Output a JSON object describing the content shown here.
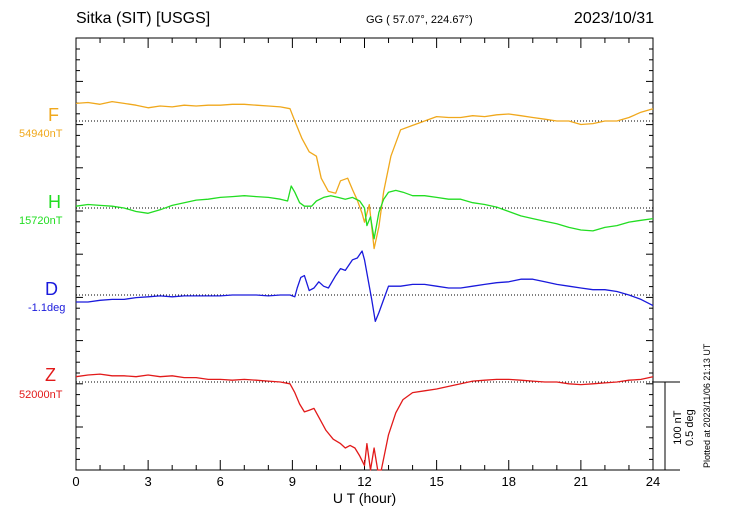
{
  "header": {
    "station": "Sitka (SIT)  [USGS]",
    "coords": "GG ( 57.07°, 224.67°)",
    "date": "2023/10/31"
  },
  "plotted_note": "Plotted at 2023/11/06 21:13 UT",
  "scale_bar": {
    "line1": "100 nT",
    "line2": "0.5 deg"
  },
  "chart_data": {
    "type": "line",
    "title": "",
    "xlabel": "U T (hour)",
    "xlim": [
      0,
      24
    ],
    "xticks": [
      0,
      3,
      6,
      9,
      12,
      15,
      18,
      21,
      24
    ],
    "grid": false,
    "series": [
      {
        "name": "F",
        "baseline": "54940nT",
        "color": "#f0a81c",
        "points": [
          [
            0,
            -20
          ],
          [
            0.5,
            -21
          ],
          [
            1,
            -19
          ],
          [
            1.5,
            -22
          ],
          [
            2,
            -20
          ],
          [
            2.5,
            -18
          ],
          [
            3,
            -15
          ],
          [
            3.5,
            -17
          ],
          [
            4,
            -16
          ],
          [
            4.5,
            -18
          ],
          [
            5,
            -17
          ],
          [
            5.5,
            -18
          ],
          [
            6,
            -18
          ],
          [
            6.5,
            -19
          ],
          [
            7,
            -19
          ],
          [
            7.5,
            -18
          ],
          [
            8,
            -17
          ],
          [
            8.5,
            -16
          ],
          [
            8.9,
            -14
          ],
          [
            9.1,
            0
          ],
          [
            9.4,
            20
          ],
          [
            9.7,
            35
          ],
          [
            10,
            40
          ],
          [
            10.2,
            65
          ],
          [
            10.5,
            80
          ],
          [
            10.8,
            82
          ],
          [
            11,
            68
          ],
          [
            11.3,
            65
          ],
          [
            11.5,
            78
          ],
          [
            11.7,
            90
          ],
          [
            11.9,
            105
          ],
          [
            12,
            115
          ],
          [
            12.2,
            95
          ],
          [
            12.4,
            145
          ],
          [
            12.6,
            120
          ],
          [
            12.8,
            80
          ],
          [
            13.1,
            40
          ],
          [
            13.5,
            10
          ],
          [
            14,
            5
          ],
          [
            14.5,
            0
          ],
          [
            15,
            -5
          ],
          [
            15.5,
            -4
          ],
          [
            16,
            -4
          ],
          [
            16.5,
            -6
          ],
          [
            17,
            -5
          ],
          [
            17.5,
            -7
          ],
          [
            18,
            -8
          ],
          [
            18.5,
            -6
          ],
          [
            19,
            -4
          ],
          [
            19.5,
            -2
          ],
          [
            20,
            0
          ],
          [
            20.5,
            0
          ],
          [
            21,
            4
          ],
          [
            21.5,
            3
          ],
          [
            22,
            0
          ],
          [
            22.5,
            0
          ],
          [
            23,
            -4
          ],
          [
            23.5,
            -10
          ],
          [
            24,
            -14
          ]
        ]
      },
      {
        "name": "H",
        "baseline": "15720nT",
        "color": "#22dd22",
        "points": [
          [
            0,
            -2
          ],
          [
            0.5,
            -4
          ],
          [
            1,
            -3
          ],
          [
            1.5,
            -2
          ],
          [
            2,
            0
          ],
          [
            2.5,
            4
          ],
          [
            3,
            6
          ],
          [
            3.5,
            2
          ],
          [
            4,
            -3
          ],
          [
            4.5,
            -6
          ],
          [
            5,
            -9
          ],
          [
            5.5,
            -10
          ],
          [
            6,
            -12
          ],
          [
            6.5,
            -13
          ],
          [
            7,
            -14
          ],
          [
            7.5,
            -13
          ],
          [
            8,
            -12
          ],
          [
            8.5,
            -10
          ],
          [
            8.8,
            -8
          ],
          [
            8.95,
            -25
          ],
          [
            9.1,
            -18
          ],
          [
            9.3,
            -6
          ],
          [
            9.5,
            -2
          ],
          [
            9.8,
            -2
          ],
          [
            10,
            -8
          ],
          [
            10.3,
            -12
          ],
          [
            10.6,
            -14
          ],
          [
            10.9,
            -12
          ],
          [
            11.2,
            -10
          ],
          [
            11.5,
            -12
          ],
          [
            11.8,
            -8
          ],
          [
            12,
            0
          ],
          [
            12.1,
            20
          ],
          [
            12.25,
            10
          ],
          [
            12.4,
            35
          ],
          [
            12.6,
            5
          ],
          [
            12.8,
            -10
          ],
          [
            13,
            -18
          ],
          [
            13.3,
            -20
          ],
          [
            13.6,
            -18
          ],
          [
            14,
            -14
          ],
          [
            14.5,
            -14
          ],
          [
            15,
            -12
          ],
          [
            15.5,
            -10
          ],
          [
            16,
            -10
          ],
          [
            16.5,
            -6
          ],
          [
            17,
            -4
          ],
          [
            17.5,
            -1
          ],
          [
            18,
            4
          ],
          [
            18.5,
            9
          ],
          [
            19,
            12
          ],
          [
            19.5,
            15
          ],
          [
            20,
            18
          ],
          [
            20.5,
            22
          ],
          [
            21,
            25
          ],
          [
            21.5,
            26
          ],
          [
            22,
            22
          ],
          [
            22.5,
            20
          ],
          [
            23,
            16
          ],
          [
            23.5,
            14
          ],
          [
            24,
            12
          ]
        ]
      },
      {
        "name": "D",
        "baseline": "-1.1deg",
        "color": "#1a1adc",
        "points": [
          [
            0,
            8
          ],
          [
            0.5,
            8
          ],
          [
            1,
            6
          ],
          [
            1.5,
            5
          ],
          [
            2,
            5
          ],
          [
            2.5,
            3
          ],
          [
            3,
            2
          ],
          [
            3.5,
            1
          ],
          [
            4,
            2
          ],
          [
            4.5,
            1
          ],
          [
            5,
            1
          ],
          [
            5.5,
            1
          ],
          [
            6,
            1
          ],
          [
            6.5,
            0
          ],
          [
            7,
            0
          ],
          [
            7.5,
            0
          ],
          [
            8,
            1
          ],
          [
            8.5,
            0
          ],
          [
            8.9,
            0
          ],
          [
            9.1,
            2
          ],
          [
            9.2,
            -8
          ],
          [
            9.35,
            -20
          ],
          [
            9.5,
            -22
          ],
          [
            9.7,
            -5
          ],
          [
            9.9,
            -8
          ],
          [
            10.1,
            -15
          ],
          [
            10.3,
            -10
          ],
          [
            10.5,
            -8
          ],
          [
            10.8,
            -22
          ],
          [
            11,
            -30
          ],
          [
            11.2,
            -28
          ],
          [
            11.5,
            -40
          ],
          [
            11.7,
            -42
          ],
          [
            11.9,
            -50
          ],
          [
            12,
            -40
          ],
          [
            12.2,
            -10
          ],
          [
            12.3,
            5
          ],
          [
            12.45,
            30
          ],
          [
            12.6,
            20
          ],
          [
            12.8,
            5
          ],
          [
            13,
            -10
          ],
          [
            13.5,
            -10
          ],
          [
            14,
            -12
          ],
          [
            14.5,
            -12
          ],
          [
            15,
            -10
          ],
          [
            15.5,
            -8
          ],
          [
            16,
            -8
          ],
          [
            16.5,
            -10
          ],
          [
            17,
            -12
          ],
          [
            17.5,
            -14
          ],
          [
            18,
            -15
          ],
          [
            18.5,
            -18
          ],
          [
            19,
            -18
          ],
          [
            19.5,
            -15
          ],
          [
            20,
            -12
          ],
          [
            20.5,
            -10
          ],
          [
            21,
            -8
          ],
          [
            21.5,
            -6
          ],
          [
            22,
            -6
          ],
          [
            22.5,
            -4
          ],
          [
            23,
            0
          ],
          [
            23.5,
            5
          ],
          [
            24,
            12
          ]
        ]
      },
      {
        "name": "Z",
        "baseline": "52000nT",
        "color": "#e21a1a",
        "points": [
          [
            0,
            -6
          ],
          [
            0.5,
            -8
          ],
          [
            1,
            -9
          ],
          [
            1.5,
            -7
          ],
          [
            2,
            -7
          ],
          [
            2.5,
            -6
          ],
          [
            3,
            -8
          ],
          [
            3.5,
            -6
          ],
          [
            4,
            -7
          ],
          [
            4.5,
            -5
          ],
          [
            5,
            -5
          ],
          [
            5.5,
            -3
          ],
          [
            6,
            -3
          ],
          [
            6.5,
            -2
          ],
          [
            7,
            -3
          ],
          [
            7.5,
            -2
          ],
          [
            8,
            -1
          ],
          [
            8.5,
            0
          ],
          [
            8.9,
            2
          ],
          [
            9.1,
            12
          ],
          [
            9.3,
            25
          ],
          [
            9.5,
            34
          ],
          [
            9.7,
            32
          ],
          [
            9.9,
            30
          ],
          [
            10.1,
            40
          ],
          [
            10.4,
            55
          ],
          [
            10.7,
            65
          ],
          [
            11,
            70
          ],
          [
            11.2,
            75
          ],
          [
            11.4,
            72
          ],
          [
            11.6,
            75
          ],
          [
            11.8,
            84
          ],
          [
            12,
            95
          ],
          [
            12.1,
            70
          ],
          [
            12.25,
            105
          ],
          [
            12.4,
            75
          ],
          [
            12.55,
            110
          ],
          [
            12.7,
            110
          ],
          [
            13,
            60
          ],
          [
            13.3,
            35
          ],
          [
            13.6,
            20
          ],
          [
            14,
            12
          ],
          [
            14.5,
            10
          ],
          [
            15,
            8
          ],
          [
            15.5,
            5
          ],
          [
            16,
            2
          ],
          [
            16.5,
            -1
          ],
          [
            17,
            -2
          ],
          [
            17.5,
            -3
          ],
          [
            18,
            -3
          ],
          [
            18.5,
            -2
          ],
          [
            19,
            -1
          ],
          [
            19.5,
            0
          ],
          [
            20,
            0
          ],
          [
            20.5,
            2
          ],
          [
            21,
            3
          ],
          [
            21.5,
            2
          ],
          [
            22,
            1
          ],
          [
            22.5,
            0
          ],
          [
            23,
            -2
          ],
          [
            23.5,
            -3
          ],
          [
            24,
            -6
          ]
        ]
      }
    ]
  }
}
